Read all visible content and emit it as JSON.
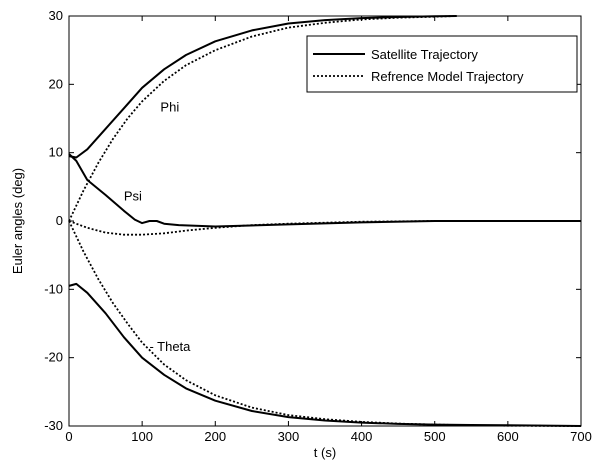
{
  "chart_data": {
    "type": "line",
    "xlabel": "t (s)",
    "ylabel": "Euler angles (deg)",
    "xlim": [
      0,
      700
    ],
    "ylim": [
      -30,
      30
    ],
    "xticks": [
      0,
      100,
      200,
      300,
      400,
      500,
      600,
      700
    ],
    "yticks": [
      -30,
      -20,
      -10,
      0,
      10,
      20,
      30
    ],
    "grid": false,
    "legend_position": "top-right",
    "legend": [
      {
        "label": "Satellite Trajectory",
        "style": "solid"
      },
      {
        "label": "Refrence Model Trajectory",
        "style": "dotted"
      }
    ],
    "annotations": [
      {
        "text": "Phi",
        "x": 125,
        "y": 16
      },
      {
        "text": "Psi",
        "x": 75,
        "y": 3
      },
      {
        "text": "- Theta",
        "x": 110,
        "y": -19
      }
    ],
    "series": [
      {
        "style": "solid",
        "color": "#000000",
        "x": [
          0,
          10,
          25,
          50,
          75,
          100,
          130,
          160,
          200,
          250,
          300,
          350,
          400,
          450,
          500,
          530
        ],
        "y": [
          9.5,
          9.3,
          10.5,
          13.5,
          16.5,
          19.5,
          22.2,
          24.3,
          26.3,
          27.9,
          28.9,
          29.4,
          29.7,
          29.85,
          29.95,
          30
        ]
      },
      {
        "style": "dotted",
        "color": "#000000",
        "x": [
          0,
          20,
          40,
          60,
          80,
          100,
          130,
          160,
          200,
          250,
          300,
          350,
          400,
          450,
          500,
          530
        ],
        "y": [
          0,
          4.5,
          8.5,
          12,
          15,
          17.5,
          20.5,
          22.8,
          25,
          27,
          28.3,
          29,
          29.5,
          29.75,
          29.9,
          30
        ]
      },
      {
        "style": "solid",
        "color": "#000000",
        "x": [
          0,
          10,
          25,
          50,
          75,
          90,
          100,
          110,
          120,
          130,
          150,
          200,
          300,
          400,
          500,
          700
        ],
        "y": [
          9.8,
          8.8,
          6.0,
          3.8,
          1.5,
          0.2,
          -0.3,
          0.0,
          0.0,
          -0.4,
          -0.6,
          -0.8,
          -0.5,
          -0.2,
          0.0,
          0.0
        ]
      },
      {
        "style": "dotted",
        "color": "#000000",
        "x": [
          0,
          25,
          50,
          75,
          100,
          130,
          160,
          200,
          250,
          300,
          400,
          500,
          700
        ],
        "y": [
          0,
          -1.0,
          -1.7,
          -2.0,
          -2.0,
          -1.8,
          -1.4,
          -1.0,
          -0.6,
          -0.4,
          -0.1,
          0.0,
          0.0
        ]
      },
      {
        "style": "solid",
        "color": "#000000",
        "x": [
          0,
          10,
          25,
          50,
          75,
          100,
          130,
          160,
          200,
          250,
          300,
          350,
          400,
          450,
          500,
          550,
          600,
          700
        ],
        "y": [
          -9.5,
          -9.2,
          -10.5,
          -13.5,
          -17,
          -20,
          -22.5,
          -24.5,
          -26.3,
          -27.8,
          -28.7,
          -29.2,
          -29.5,
          -29.7,
          -29.8,
          -29.85,
          -29.9,
          -30
        ]
      },
      {
        "style": "dotted",
        "color": "#000000",
        "x": [
          0,
          20,
          40,
          60,
          80,
          100,
          130,
          160,
          200,
          250,
          300,
          350,
          400,
          450,
          500,
          550,
          600,
          700
        ],
        "y": [
          0,
          -4.5,
          -8.5,
          -12,
          -15,
          -17.8,
          -21,
          -23.3,
          -25.5,
          -27.3,
          -28.4,
          -29,
          -29.4,
          -29.65,
          -29.8,
          -29.9,
          -29.95,
          -30
        ]
      }
    ]
  }
}
